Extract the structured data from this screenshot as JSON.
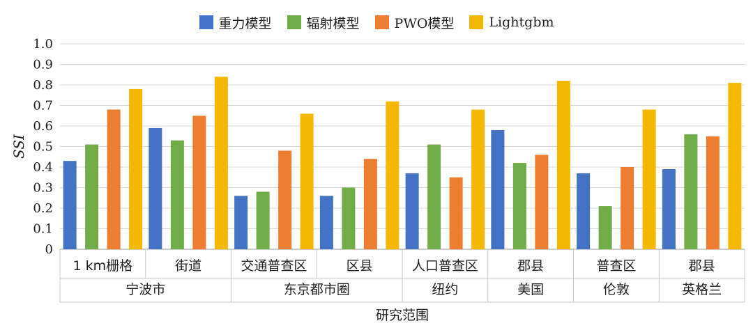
{
  "chart_data": {
    "type": "bar",
    "ylabel": "SSI",
    "xlabel": "研究范围",
    "ylim": [
      0,
      1.0
    ],
    "yticks": [
      "0",
      "0.1",
      "0.2",
      "0.3",
      "0.4",
      "0.5",
      "0.6",
      "0.7",
      "0.8",
      "0.9",
      "1.0"
    ],
    "grid": true,
    "legend_position": "top-center",
    "categories": [
      "1 km栅格",
      "街道",
      "交通普查区",
      "区县",
      "人口普查区",
      "郡县",
      "普查区",
      "郡县"
    ],
    "groups": [
      {
        "label": "宁波市",
        "span": 2
      },
      {
        "label": "东京都市圈",
        "span": 2
      },
      {
        "label": "纽约",
        "span": 1
      },
      {
        "label": "美国",
        "span": 1
      },
      {
        "label": "伦敦",
        "span": 1
      },
      {
        "label": "英格兰",
        "span": 1
      }
    ],
    "series": [
      {
        "name": "重力模型",
        "color": "#4472c4",
        "values": [
          0.43,
          0.59,
          0.26,
          0.26,
          0.37,
          0.58,
          0.37,
          0.39
        ]
      },
      {
        "name": "辐射模型",
        "color": "#70ad47",
        "values": [
          0.51,
          0.53,
          0.28,
          0.3,
          0.51,
          0.42,
          0.21,
          0.56
        ]
      },
      {
        "name": "PWO模型",
        "color": "#ed7d31",
        "values": [
          0.68,
          0.65,
          0.48,
          0.44,
          0.35,
          0.46,
          0.4,
          0.55
        ]
      },
      {
        "name": "Lightgbm",
        "color": "#f5b800",
        "values": [
          0.78,
          0.84,
          0.66,
          0.72,
          0.68,
          0.82,
          0.68,
          0.81
        ]
      }
    ]
  }
}
